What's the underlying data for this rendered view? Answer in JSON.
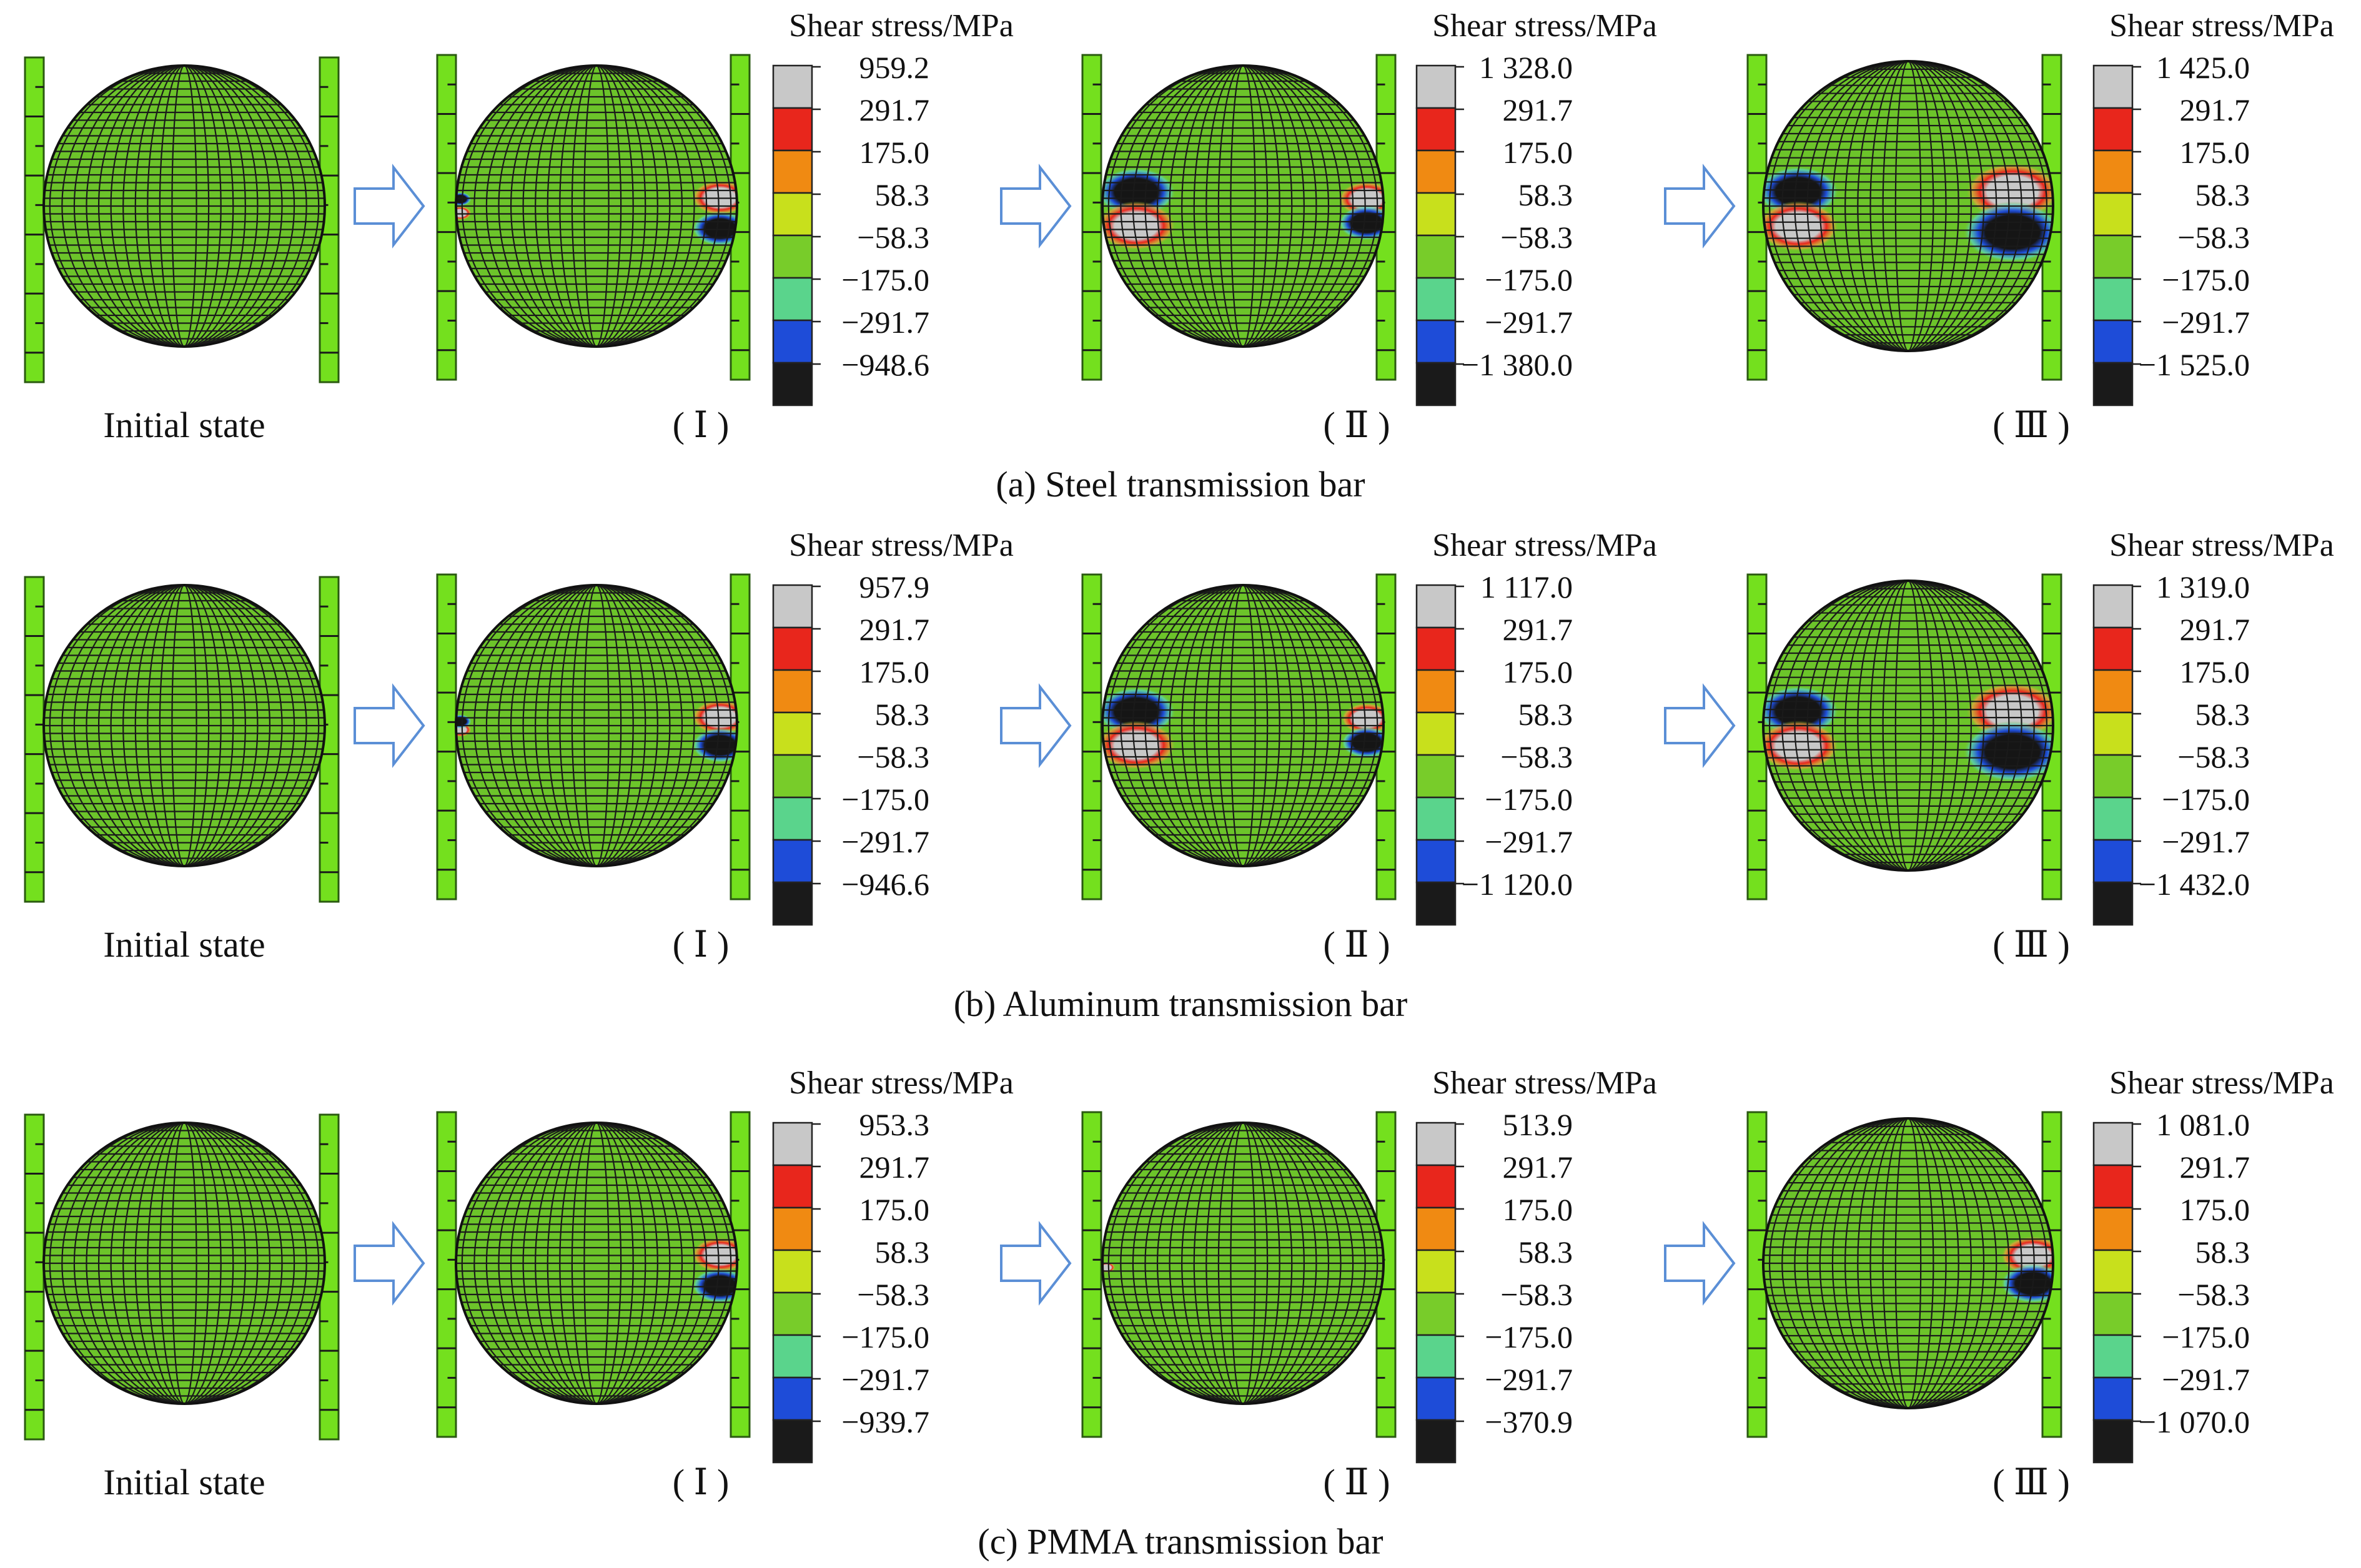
{
  "figure": {
    "legend_title": "Shear stress/MPa",
    "initial_label": "Initial state",
    "stage_labels": [
      "( Ⅰ )",
      "( Ⅱ )",
      "( Ⅲ )"
    ],
    "rows": [
      {
        "caption": "(a) Steel transmission bar",
        "legends": [
          {
            "values": [
              "959.2",
              "291.7",
              "175.0",
              "58.3",
              "−58.3",
              "−175.0",
              "−291.7",
              "−948.6"
            ]
          },
          {
            "values": [
              "1 328.0",
              "291.7",
              "175.0",
              "58.3",
              "−58.3",
              "−175.0",
              "−291.7",
              "−1 380.0"
            ]
          },
          {
            "values": [
              "1 425.0",
              "291.7",
              "175.0",
              "58.3",
              "−58.3",
              "−175.0",
              "−291.7",
              "−1 525.0"
            ]
          }
        ]
      },
      {
        "caption": "(b) Aluminum transmission bar",
        "legends": [
          {
            "values": [
              "957.9",
              "291.7",
              "175.0",
              "58.3",
              "−58.3",
              "−175.0",
              "−291.7",
              "−946.6"
            ]
          },
          {
            "values": [
              "1 117.0",
              "291.7",
              "175.0",
              "58.3",
              "−58.3",
              "−175.0",
              "−291.7",
              "−1 120.0"
            ]
          },
          {
            "values": [
              "1 319.0",
              "291.7",
              "175.0",
              "58.3",
              "−58.3",
              "−175.0",
              "−291.7",
              "−1 432.0"
            ]
          }
        ]
      },
      {
        "caption": "(c) PMMA transmission bar",
        "legends": [
          {
            "values": [
              "953.3",
              "291.7",
              "175.0",
              "58.3",
              "−58.3",
              "−175.0",
              "−291.7",
              "−939.7"
            ]
          },
          {
            "values": [
              "513.9",
              "291.7",
              "175.0",
              "58.3",
              "−58.3",
              "−175.0",
              "−291.7",
              "−370.9"
            ]
          },
          {
            "values": [
              "1 081.0",
              "291.7",
              "175.0",
              "58.3",
              "−58.3",
              "−175.0",
              "−291.7",
              "−1 070.0"
            ]
          }
        ]
      }
    ],
    "colors": {
      "background": "#ffffff",
      "mesh_green": "#6cc42a",
      "bar_green": "#74e01e",
      "mesh_line": "#1a1a1a",
      "arrow_stroke": "#5b8fd6",
      "legend_bands": [
        "#c8c8c8",
        "#e8261c",
        "#f08a12",
        "#c8e01c",
        "#78cc2a",
        "#5ad48c",
        "#1e4cd8",
        "#1a1a1a"
      ]
    },
    "icons": {
      "arrow": "right-arrow-outline-icon"
    }
  }
}
